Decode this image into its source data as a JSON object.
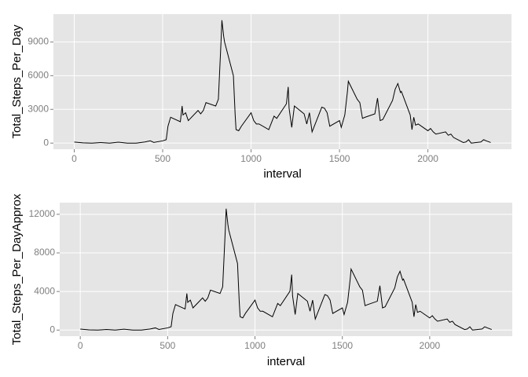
{
  "chart_data": [
    {
      "type": "line",
      "x_label": "interval",
      "y_label": "Total_Steps_Per_Day",
      "x": [
        0,
        50,
        100,
        150,
        200,
        250,
        300,
        350,
        400,
        430,
        450,
        500,
        520,
        530,
        545,
        600,
        610,
        615,
        630,
        645,
        700,
        715,
        730,
        745,
        800,
        815,
        830,
        835,
        845,
        850,
        900,
        910,
        915,
        930,
        945,
        1000,
        1015,
        1030,
        1045,
        1100,
        1115,
        1130,
        1145,
        1200,
        1210,
        1215,
        1230,
        1245,
        1300,
        1315,
        1330,
        1345,
        1400,
        1415,
        1430,
        1445,
        1500,
        1510,
        1530,
        1545,
        1550,
        1600,
        1615,
        1630,
        1645,
        1700,
        1715,
        1730,
        1745,
        1800,
        1815,
        1830,
        1845,
        1850,
        1900,
        1910,
        1920,
        1930,
        1945,
        2000,
        2015,
        2030,
        2045,
        2100,
        2115,
        2130,
        2145,
        2200,
        2215,
        2230,
        2245,
        2300,
        2315,
        2330,
        2355
      ],
      "series": [
        {
          "color": "#000000",
          "values": [
            91,
            20,
            0,
            50,
            0,
            80,
            0,
            0,
            100,
            200,
            60,
            200,
            300,
            1500,
            2300,
            1900,
            3300,
            2500,
            2700,
            2000,
            2900,
            2600,
            2900,
            3600,
            3300,
            3900,
            9000,
            10927,
            9500,
            9000,
            6000,
            2500,
            1200,
            1100,
            1500,
            2700,
            2000,
            1700,
            1700,
            1200,
            1800,
            2400,
            2200,
            3500,
            5000,
            3100,
            1400,
            3300,
            2600,
            1700,
            2700,
            1000,
            3200,
            3100,
            2700,
            1500,
            2000,
            1400,
            2500,
            4600,
            5500,
            3900,
            3600,
            2200,
            2300,
            2600,
            4000,
            2000,
            2100,
            3800,
            4800,
            5300,
            4500,
            4600,
            2500,
            1200,
            2300,
            1600,
            1700,
            1100,
            1300,
            1000,
            800,
            1000,
            700,
            800,
            500,
            50,
            100,
            300,
            0,
            100,
            300,
            200,
            50
          ]
        }
      ],
      "xlim": [
        -117.75,
        2472.75
      ],
      "xticks": [
        0,
        500,
        1000,
        1500,
        2000
      ],
      "ylim": [
        -546,
        11473
      ],
      "yticks": [
        0,
        3000,
        6000,
        9000
      ],
      "grid": true
    },
    {
      "type": "line",
      "x_label": "interval",
      "y_label": "Total_Steps_Per_DayApprox",
      "x": [
        0,
        50,
        100,
        150,
        200,
        250,
        300,
        350,
        400,
        430,
        450,
        500,
        520,
        530,
        545,
        600,
        610,
        615,
        630,
        645,
        700,
        715,
        730,
        745,
        800,
        815,
        830,
        835,
        845,
        850,
        900,
        910,
        915,
        930,
        945,
        1000,
        1015,
        1030,
        1045,
        1100,
        1115,
        1130,
        1145,
        1200,
        1210,
        1215,
        1230,
        1245,
        1300,
        1315,
        1330,
        1345,
        1400,
        1415,
        1430,
        1445,
        1500,
        1510,
        1530,
        1545,
        1550,
        1600,
        1615,
        1630,
        1645,
        1700,
        1715,
        1730,
        1745,
        1800,
        1815,
        1830,
        1845,
        1850,
        1900,
        1910,
        1920,
        1930,
        1945,
        2000,
        2015,
        2030,
        2045,
        2100,
        2115,
        2130,
        2145,
        2200,
        2215,
        2230,
        2245,
        2300,
        2315,
        2330,
        2355
      ],
      "series": [
        {
          "color": "#000000",
          "values": [
            105,
            23,
            0,
            58,
            0,
            92,
            0,
            0,
            115,
            230,
            69,
            230,
            345,
            1725,
            2645,
            2185,
            3795,
            2875,
            3105,
            2300,
            3335,
            2990,
            3335,
            4140,
            3795,
            4485,
            10350,
            12580,
            10925,
            10350,
            6900,
            2875,
            1380,
            1265,
            1725,
            3105,
            2300,
            1955,
            1955,
            1380,
            2070,
            2760,
            2530,
            4025,
            5750,
            3565,
            1610,
            3795,
            2990,
            1955,
            3105,
            1150,
            3680,
            3565,
            3105,
            1725,
            2300,
            1610,
            2875,
            5290,
            6325,
            4485,
            4140,
            2530,
            2645,
            2990,
            4600,
            2300,
            2415,
            4370,
            5520,
            6095,
            5175,
            5290,
            2875,
            1380,
            2645,
            1840,
            1955,
            1265,
            1495,
            1150,
            920,
            1150,
            805,
            920,
            575,
            58,
            115,
            345,
            0,
            115,
            345,
            230,
            58
          ]
        }
      ],
      "xlim": [
        -117.75,
        2472.75
      ],
      "xticks": [
        0,
        500,
        1000,
        1500,
        2000
      ],
      "ylim": [
        -629,
        13209
      ],
      "yticks": [
        0,
        4000,
        8000,
        12000
      ],
      "grid": true
    }
  ]
}
